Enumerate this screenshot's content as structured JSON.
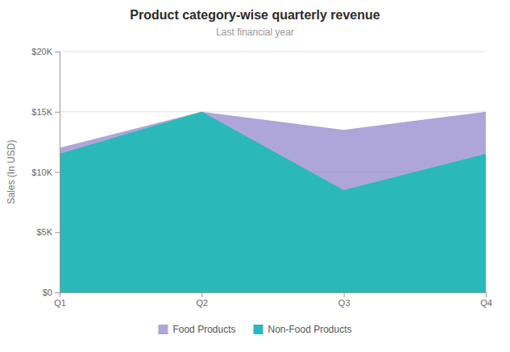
{
  "chart_data": {
    "type": "area",
    "title": "Product category-wise quarterly revenue",
    "subtitle": "Last financial year",
    "ylabel": "Sales (In USD)",
    "categories": [
      "Q1",
      "Q2",
      "Q3",
      "Q4"
    ],
    "series": [
      {
        "name": "Food Products",
        "color": "#8b80c8",
        "values": [
          12000,
          15000,
          13500,
          15000
        ]
      },
      {
        "name": "Non-Food Products",
        "color": "#2ab8b8",
        "values": [
          11500,
          15000,
          8500,
          11500
        ]
      }
    ],
    "ylim": [
      0,
      20000
    ],
    "yticks": [
      {
        "value": 0,
        "label": "$0"
      },
      {
        "value": 5000,
        "label": "$5K"
      },
      {
        "value": 10000,
        "label": "$10K"
      },
      {
        "value": 15000,
        "label": "$15K"
      },
      {
        "value": 20000,
        "label": "$20K"
      }
    ],
    "grid": true,
    "legend": "bottom"
  }
}
